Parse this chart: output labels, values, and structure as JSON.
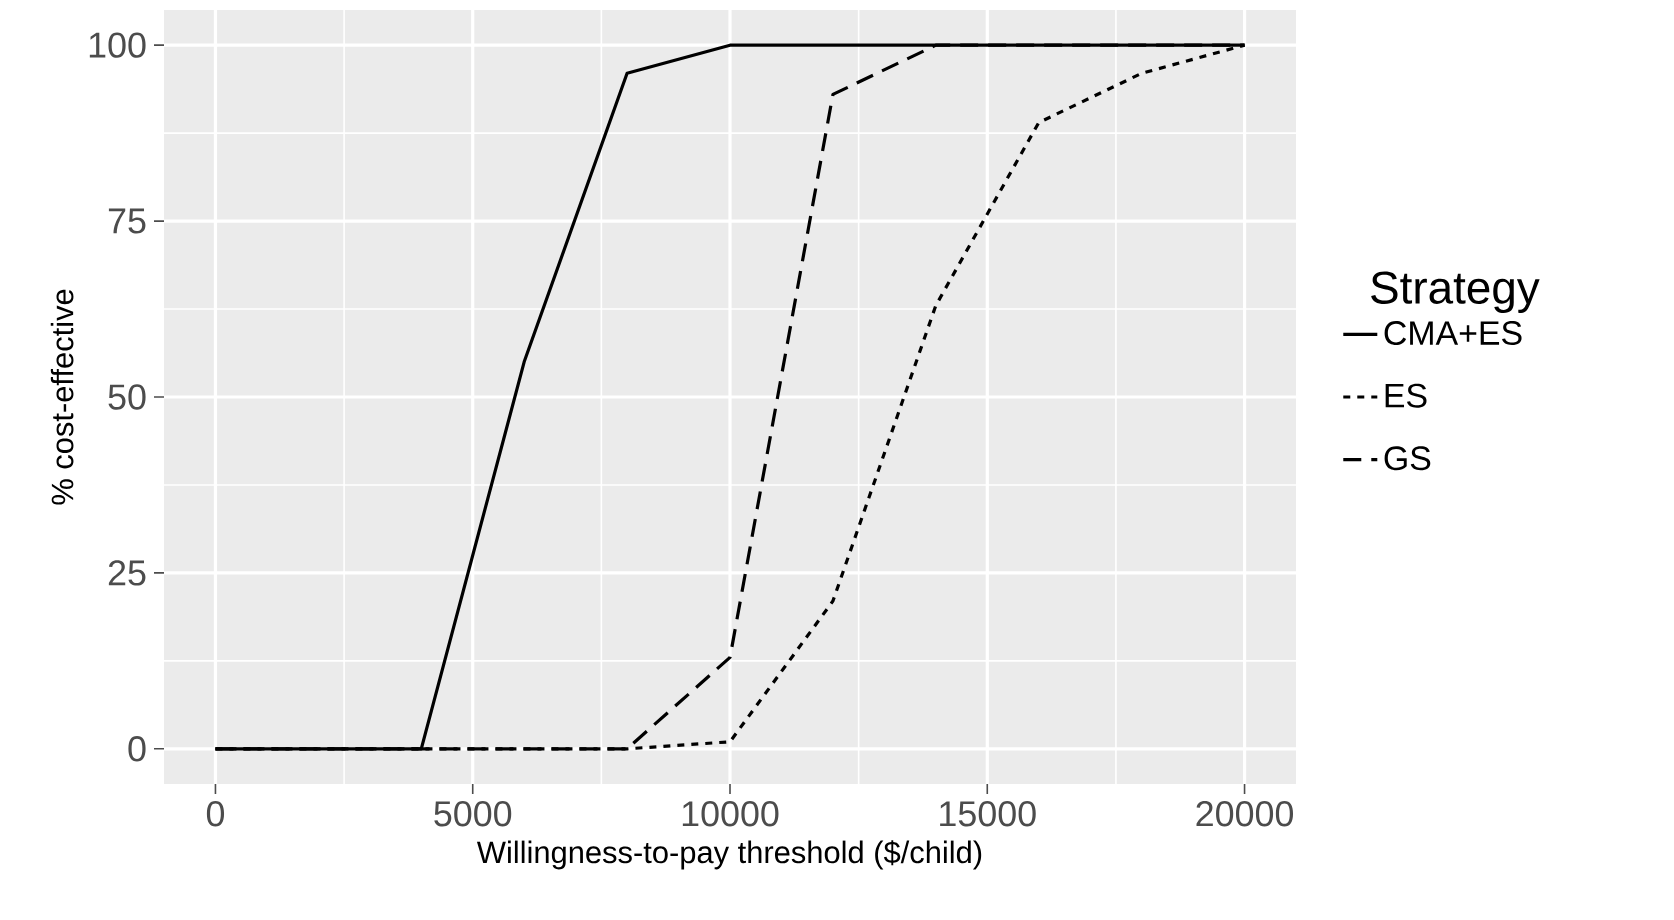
{
  "chart_data": {
    "type": "line",
    "xlabel": "Willingness-to-pay threshold ($/child)",
    "ylabel": "% cost-effective",
    "legend_title": "Strategy",
    "x": [
      0,
      2000,
      4000,
      6000,
      8000,
      10000,
      12000,
      14000,
      16000,
      18000,
      20000
    ],
    "series": [
      {
        "name": "CMA+ES",
        "color": "#000000",
        "line_style": "solid",
        "values": [
          0,
          0,
          0,
          55,
          96,
          100,
          100,
          100,
          100,
          100,
          100
        ]
      },
      {
        "name": "ES",
        "color": "#000000",
        "line_style": "dotted",
        "values": [
          0,
          0,
          0,
          0,
          0,
          1,
          21,
          63,
          89,
          96,
          100
        ]
      },
      {
        "name": "GS",
        "color": "#000000",
        "line_style": "dashed",
        "values": [
          0,
          0,
          0,
          0,
          0,
          13,
          93,
          100,
          100,
          100,
          100
        ]
      }
    ],
    "xlim": [
      -1000,
      21000
    ],
    "ylim": [
      -5,
      105
    ],
    "xticks": [
      0,
      5000,
      10000,
      15000,
      20000
    ],
    "yticks": [
      0,
      25,
      50,
      75,
      100
    ],
    "grid": true,
    "legend": "right",
    "marker": "none"
  }
}
